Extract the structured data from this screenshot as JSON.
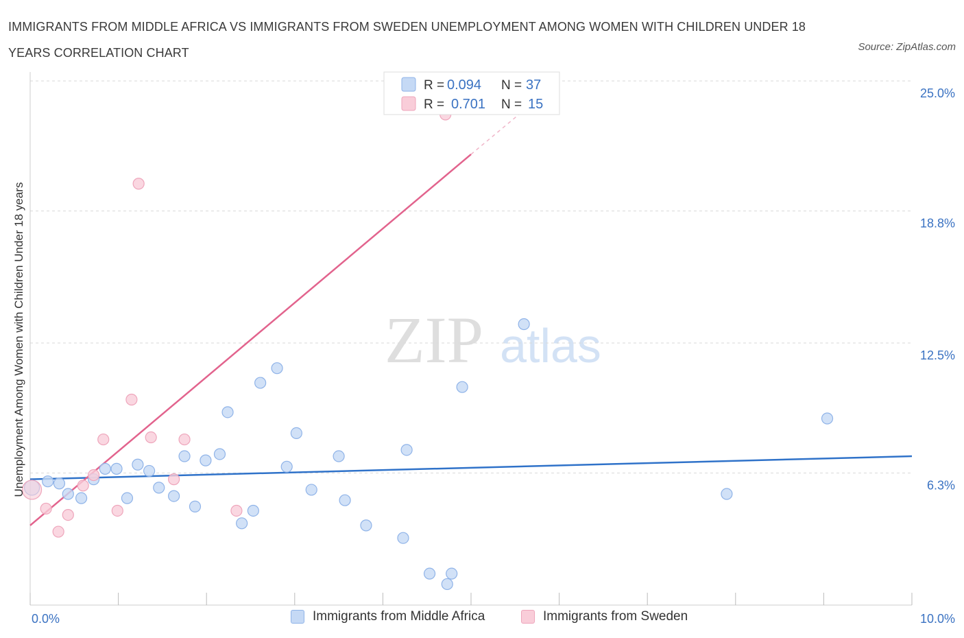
{
  "title": "IMMIGRANTS FROM MIDDLE AFRICA VS IMMIGRANTS FROM SWEDEN UNEMPLOYMENT AMONG WOMEN WITH CHILDREN UNDER 18 YEARS CORRELATION CHART",
  "source": "Source: ZipAtlas.com",
  "watermark": {
    "zip": "ZIP",
    "atlas": "atlas"
  },
  "colors": {
    "blue_fill": "#c5d9f5",
    "blue_stroke": "#8fb3e8",
    "blue_line": "#2f72c9",
    "pink_fill": "#f9cdd9",
    "pink_stroke": "#eea5bb",
    "pink_line": "#e2638d",
    "value_text": "#3a72c2",
    "grid": "#d9d9d9"
  },
  "legend": {
    "rows": [
      {
        "r_label": "R = ",
        "r_value": "0.094",
        "n_label": "N = ",
        "n_value": "37"
      },
      {
        "r_label": "R = ",
        "r_value": "0.701",
        "n_label": "N = ",
        "n_value": "15"
      }
    ]
  },
  "chart_data": {
    "type": "scatter",
    "xlabel": "",
    "ylabel": "Unemployment Among Women with Children Under 18 years",
    "xlim": [
      0,
      10
    ],
    "ylim": [
      0,
      25
    ],
    "x_tick_labels": [
      "0.0%",
      "10.0%"
    ],
    "y_tick_labels": [
      "6.3%",
      "12.5%",
      "18.8%",
      "25.0%"
    ],
    "y_ticks": [
      6.3,
      12.5,
      18.8,
      25.0
    ],
    "grid": true,
    "legend_position": "top-center",
    "series": [
      {
        "name": "Immigrants from Middle Africa",
        "color": "blue",
        "points": [
          [
            0.02,
            5.6
          ],
          [
            0.2,
            5.9
          ],
          [
            0.33,
            5.8
          ],
          [
            0.43,
            5.3
          ],
          [
            0.58,
            5.1
          ],
          [
            0.72,
            6.0
          ],
          [
            0.85,
            6.5
          ],
          [
            0.98,
            6.5
          ],
          [
            1.1,
            5.1
          ],
          [
            1.22,
            6.7
          ],
          [
            1.35,
            6.4
          ],
          [
            1.46,
            5.6
          ],
          [
            1.63,
            5.2
          ],
          [
            1.75,
            7.1
          ],
          [
            1.87,
            4.7
          ],
          [
            1.99,
            6.9
          ],
          [
            2.15,
            7.2
          ],
          [
            2.24,
            9.2
          ],
          [
            2.4,
            3.9
          ],
          [
            2.53,
            4.5
          ],
          [
            2.61,
            10.6
          ],
          [
            2.8,
            11.3
          ],
          [
            2.91,
            6.6
          ],
          [
            3.02,
            8.2
          ],
          [
            3.19,
            5.5
          ],
          [
            3.5,
            7.1
          ],
          [
            3.57,
            5.0
          ],
          [
            3.81,
            3.8
          ],
          [
            4.23,
            3.2
          ],
          [
            4.27,
            7.4
          ],
          [
            4.53,
            1.5
          ],
          [
            4.73,
            1.0
          ],
          [
            4.78,
            1.5
          ],
          [
            4.9,
            10.4
          ],
          [
            5.6,
            13.4
          ],
          [
            7.9,
            5.3
          ],
          [
            9.04,
            8.9
          ]
        ],
        "trend": {
          "x": [
            0,
            10
          ],
          "y": [
            6.0,
            7.1
          ]
        }
      },
      {
        "name": "Immigrants from Sweden",
        "color": "pink",
        "points": [
          [
            0.02,
            5.5
          ],
          [
            0.18,
            4.6
          ],
          [
            0.32,
            3.5
          ],
          [
            0.43,
            4.3
          ],
          [
            0.6,
            5.7
          ],
          [
            0.72,
            6.2
          ],
          [
            0.83,
            7.9
          ],
          [
            0.99,
            4.5
          ],
          [
            1.15,
            9.8
          ],
          [
            1.23,
            20.1
          ],
          [
            1.37,
            8.0
          ],
          [
            1.63,
            6.0
          ],
          [
            1.75,
            7.9
          ],
          [
            2.34,
            4.5
          ],
          [
            4.71,
            23.4
          ]
        ],
        "trend": {
          "x": [
            0,
            5.0
          ],
          "y": [
            3.8,
            21.5
          ]
        },
        "trend_extension": {
          "x": [
            5.0,
            6.0
          ],
          "y": [
            21.5,
            25.0
          ]
        }
      }
    ]
  }
}
